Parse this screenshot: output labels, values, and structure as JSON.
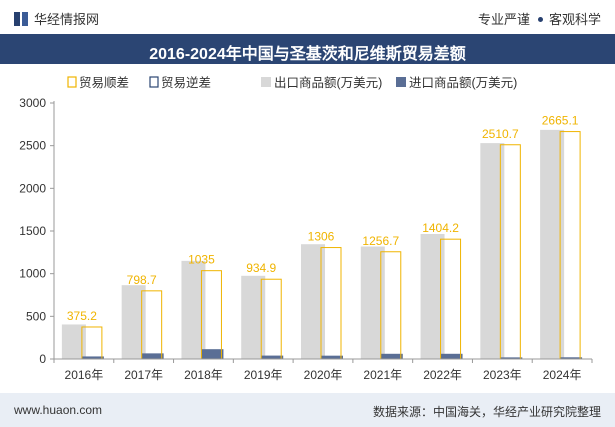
{
  "header": {
    "brand": "华经情报网",
    "slogan_left": "专业严谨",
    "slogan_right": "客观科学",
    "title": "2016-2024年中国与圣基茨和尼维斯贸易差额"
  },
  "footer": {
    "site": "www.huaon.com",
    "source": "数据来源：中国海关，华经产业研究院整理"
  },
  "colors": {
    "surplus": "#f0b400",
    "deficit": "#2b4573",
    "export": "#d8d8d8",
    "import": "#5a6e95",
    "label": "#f0b400"
  },
  "chart_data": {
    "type": "bar",
    "title": "2016-2024年中国与圣基茨和尼维斯贸易差额",
    "categories": [
      "2016年",
      "2017年",
      "2018年",
      "2019年",
      "2020年",
      "2021年",
      "2022年",
      "2023年",
      "2024年"
    ],
    "series": [
      {
        "name": "贸易顺差",
        "values": [
          375.2,
          798.7,
          1035,
          934.9,
          1306,
          1256.7,
          1404.2,
          2510.7,
          2665.1
        ]
      },
      {
        "name": "贸易逆差",
        "values": [
          0,
          0,
          0,
          0,
          0,
          0,
          0,
          0,
          0
        ]
      },
      {
        "name": "出口商品额(万美元)",
        "values": [
          405,
          865,
          1150,
          975,
          1345,
          1318,
          1465,
          2530,
          2685
        ]
      },
      {
        "name": "进口商品额(万美元)",
        "values": [
          30,
          66,
          115,
          40,
          39,
          61,
          61,
          19,
          20
        ]
      }
    ],
    "data_labels": [
      "375.2",
      "798.7",
      "1035",
      "934.9",
      "1306",
      "1256.7",
      "1404.2",
      "2510.7",
      "2665.1"
    ],
    "yticks": [
      0,
      500,
      1000,
      1500,
      2000,
      2500,
      3000
    ],
    "ytick_labels": [
      "0",
      "500",
      "1000",
      "1500",
      "2000",
      "2500",
      "3000"
    ],
    "ylim": [
      0,
      3000
    ],
    "legend_position": "top",
    "grid": false
  }
}
